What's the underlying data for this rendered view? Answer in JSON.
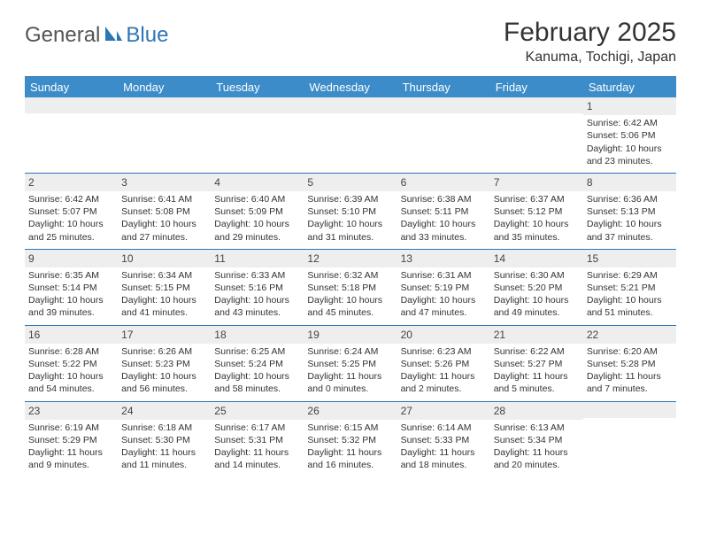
{
  "brand": {
    "word1": "General",
    "word2": "Blue"
  },
  "title": "February 2025",
  "location": "Kanuma, Tochigi, Japan",
  "colors": {
    "header_bg": "#3c8cc9",
    "accent": "#2e75b6",
    "daynum_bg": "#eeeeee",
    "text": "#333333"
  },
  "weekdays": [
    "Sunday",
    "Monday",
    "Tuesday",
    "Wednesday",
    "Thursday",
    "Friday",
    "Saturday"
  ],
  "weeks": [
    [
      {
        "day": "",
        "lines": []
      },
      {
        "day": "",
        "lines": []
      },
      {
        "day": "",
        "lines": []
      },
      {
        "day": "",
        "lines": []
      },
      {
        "day": "",
        "lines": []
      },
      {
        "day": "",
        "lines": []
      },
      {
        "day": "1",
        "lines": [
          "Sunrise: 6:42 AM",
          "Sunset: 5:06 PM",
          "Daylight: 10 hours and 23 minutes."
        ]
      }
    ],
    [
      {
        "day": "2",
        "lines": [
          "Sunrise: 6:42 AM",
          "Sunset: 5:07 PM",
          "Daylight: 10 hours and 25 minutes."
        ]
      },
      {
        "day": "3",
        "lines": [
          "Sunrise: 6:41 AM",
          "Sunset: 5:08 PM",
          "Daylight: 10 hours and 27 minutes."
        ]
      },
      {
        "day": "4",
        "lines": [
          "Sunrise: 6:40 AM",
          "Sunset: 5:09 PM",
          "Daylight: 10 hours and 29 minutes."
        ]
      },
      {
        "day": "5",
        "lines": [
          "Sunrise: 6:39 AM",
          "Sunset: 5:10 PM",
          "Daylight: 10 hours and 31 minutes."
        ]
      },
      {
        "day": "6",
        "lines": [
          "Sunrise: 6:38 AM",
          "Sunset: 5:11 PM",
          "Daylight: 10 hours and 33 minutes."
        ]
      },
      {
        "day": "7",
        "lines": [
          "Sunrise: 6:37 AM",
          "Sunset: 5:12 PM",
          "Daylight: 10 hours and 35 minutes."
        ]
      },
      {
        "day": "8",
        "lines": [
          "Sunrise: 6:36 AM",
          "Sunset: 5:13 PM",
          "Daylight: 10 hours and 37 minutes."
        ]
      }
    ],
    [
      {
        "day": "9",
        "lines": [
          "Sunrise: 6:35 AM",
          "Sunset: 5:14 PM",
          "Daylight: 10 hours and 39 minutes."
        ]
      },
      {
        "day": "10",
        "lines": [
          "Sunrise: 6:34 AM",
          "Sunset: 5:15 PM",
          "Daylight: 10 hours and 41 minutes."
        ]
      },
      {
        "day": "11",
        "lines": [
          "Sunrise: 6:33 AM",
          "Sunset: 5:16 PM",
          "Daylight: 10 hours and 43 minutes."
        ]
      },
      {
        "day": "12",
        "lines": [
          "Sunrise: 6:32 AM",
          "Sunset: 5:18 PM",
          "Daylight: 10 hours and 45 minutes."
        ]
      },
      {
        "day": "13",
        "lines": [
          "Sunrise: 6:31 AM",
          "Sunset: 5:19 PM",
          "Daylight: 10 hours and 47 minutes."
        ]
      },
      {
        "day": "14",
        "lines": [
          "Sunrise: 6:30 AM",
          "Sunset: 5:20 PM",
          "Daylight: 10 hours and 49 minutes."
        ]
      },
      {
        "day": "15",
        "lines": [
          "Sunrise: 6:29 AM",
          "Sunset: 5:21 PM",
          "Daylight: 10 hours and 51 minutes."
        ]
      }
    ],
    [
      {
        "day": "16",
        "lines": [
          "Sunrise: 6:28 AM",
          "Sunset: 5:22 PM",
          "Daylight: 10 hours and 54 minutes."
        ]
      },
      {
        "day": "17",
        "lines": [
          "Sunrise: 6:26 AM",
          "Sunset: 5:23 PM",
          "Daylight: 10 hours and 56 minutes."
        ]
      },
      {
        "day": "18",
        "lines": [
          "Sunrise: 6:25 AM",
          "Sunset: 5:24 PM",
          "Daylight: 10 hours and 58 minutes."
        ]
      },
      {
        "day": "19",
        "lines": [
          "Sunrise: 6:24 AM",
          "Sunset: 5:25 PM",
          "Daylight: 11 hours and 0 minutes."
        ]
      },
      {
        "day": "20",
        "lines": [
          "Sunrise: 6:23 AM",
          "Sunset: 5:26 PM",
          "Daylight: 11 hours and 2 minutes."
        ]
      },
      {
        "day": "21",
        "lines": [
          "Sunrise: 6:22 AM",
          "Sunset: 5:27 PM",
          "Daylight: 11 hours and 5 minutes."
        ]
      },
      {
        "day": "22",
        "lines": [
          "Sunrise: 6:20 AM",
          "Sunset: 5:28 PM",
          "Daylight: 11 hours and 7 minutes."
        ]
      }
    ],
    [
      {
        "day": "23",
        "lines": [
          "Sunrise: 6:19 AM",
          "Sunset: 5:29 PM",
          "Daylight: 11 hours and 9 minutes."
        ]
      },
      {
        "day": "24",
        "lines": [
          "Sunrise: 6:18 AM",
          "Sunset: 5:30 PM",
          "Daylight: 11 hours and 11 minutes."
        ]
      },
      {
        "day": "25",
        "lines": [
          "Sunrise: 6:17 AM",
          "Sunset: 5:31 PM",
          "Daylight: 11 hours and 14 minutes."
        ]
      },
      {
        "day": "26",
        "lines": [
          "Sunrise: 6:15 AM",
          "Sunset: 5:32 PM",
          "Daylight: 11 hours and 16 minutes."
        ]
      },
      {
        "day": "27",
        "lines": [
          "Sunrise: 6:14 AM",
          "Sunset: 5:33 PM",
          "Daylight: 11 hours and 18 minutes."
        ]
      },
      {
        "day": "28",
        "lines": [
          "Sunrise: 6:13 AM",
          "Sunset: 5:34 PM",
          "Daylight: 11 hours and 20 minutes."
        ]
      },
      {
        "day": "",
        "lines": []
      }
    ]
  ]
}
